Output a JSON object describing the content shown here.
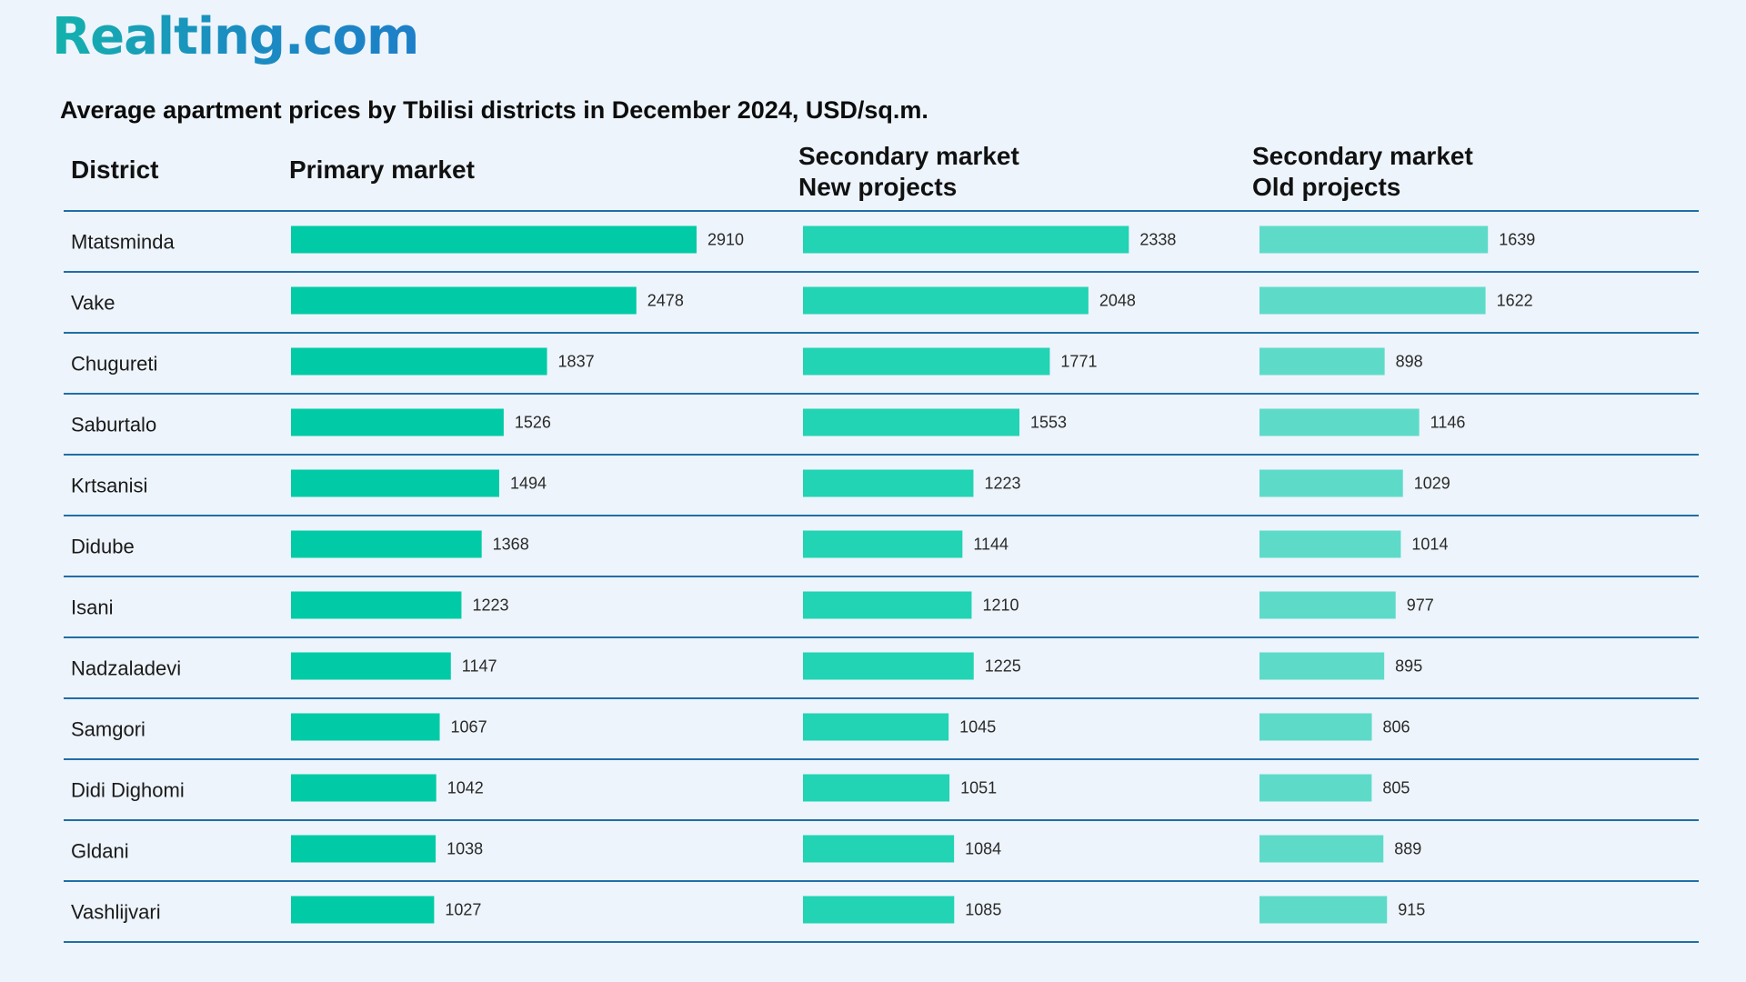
{
  "brand": {
    "logo_text": "Realting.com"
  },
  "header": {
    "district_label": "District",
    "primary_label": "Primary market",
    "sec_new_line1": "Secondary market",
    "sec_new_line2": "New projects",
    "sec_old_line1": "Secondary market",
    "sec_old_line2": "Old projects"
  },
  "colors": {
    "primary": "#00cba6",
    "secondary_new": "#22d3b4",
    "secondary_old": "#5edbc8",
    "divider": "#1f6fa6"
  },
  "chart_data": {
    "type": "bar",
    "orientation": "horizontal",
    "title": "Average apartment prices by Tbilisi districts in December 2024, USD/sq.m.",
    "categories": [
      "Mtatsminda",
      "Vake",
      "Chugureti",
      "Saburtalo",
      "Krtsanisi",
      "Didube",
      "Isani",
      "Nadzaladevi",
      "Samgori",
      "Didi Dighomi",
      "Gldani",
      "Vashlijvari"
    ],
    "series": [
      {
        "name": "Primary market",
        "values": [
          2910,
          2478,
          1837,
          1526,
          1494,
          1368,
          1223,
          1147,
          1067,
          1042,
          1038,
          1027
        ]
      },
      {
        "name": "Secondary market New projects",
        "values": [
          2338,
          2048,
          1771,
          1553,
          1223,
          1144,
          1210,
          1225,
          1045,
          1051,
          1084,
          1085
        ]
      },
      {
        "name": "Secondary market Old projects",
        "values": [
          1639,
          1622,
          898,
          1146,
          1029,
          1014,
          977,
          895,
          806,
          805,
          889,
          915
        ]
      }
    ],
    "xlim": [
      0,
      2910
    ]
  }
}
